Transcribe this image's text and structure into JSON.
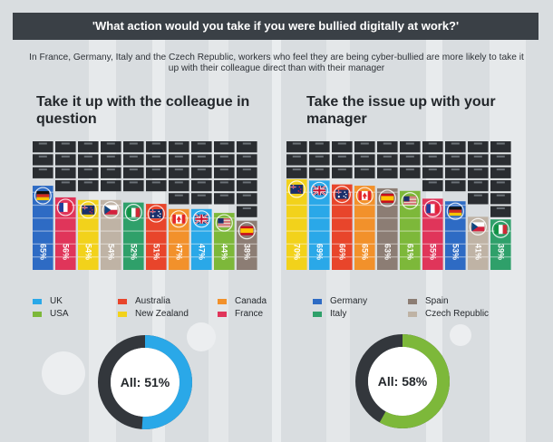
{
  "header": {
    "question": "'What action would you take if you were bullied digitally at work?'"
  },
  "subtitle": "In France, Germany, Italy and the Czech Republic, workers who feel they are being cyber-bullied are more likely to take it up with their colleague direct than with their manager",
  "colors": {
    "UK": "#2aa8e8",
    "USA": "#7db83a",
    "Australia": "#e8452b",
    "New Zealand": "#f2d21b",
    "Canada": "#f2912b",
    "France": "#e0355a",
    "Germany": "#2e6bc4",
    "Italy": "#2fa06a",
    "Spain": "#8c7d74",
    "Czech Republic": "#bfb3a5",
    "cabinet_dark": "#2a2d31",
    "donut_dark": "#33373c"
  },
  "legend": {
    "items": [
      {
        "label": "UK",
        "key": "UK"
      },
      {
        "label": "USA",
        "key": "USA"
      },
      {
        "label": "Australia",
        "key": "Australia"
      },
      {
        "label": "New Zealand",
        "key": "New Zealand"
      },
      {
        "label": "Canada",
        "key": "Canada"
      },
      {
        "label": "France",
        "key": "France"
      },
      {
        "label": "Germany",
        "key": "Germany"
      },
      {
        "label": "Italy",
        "key": "Italy"
      },
      {
        "label": "Spain",
        "key": "Spain"
      },
      {
        "label": "Czech Republic",
        "key": "Czech Republic"
      }
    ]
  },
  "chart_data": [
    {
      "type": "bar",
      "title": "Take it up with the colleague in question",
      "categories": [
        "Germany",
        "France",
        "New Zealand",
        "Czech Republic",
        "Italy",
        "Australia",
        "Canada",
        "UK",
        "USA",
        "Spain"
      ],
      "values": [
        65,
        56,
        54,
        54,
        52,
        51,
        47,
        47,
        44,
        38
      ],
      "value_labels": [
        "65%",
        "56%",
        "54%",
        "54%",
        "52%",
        "51%",
        "47%",
        "47%",
        "44%",
        "38%"
      ],
      "unit": "%",
      "ylim": [
        0,
        100
      ],
      "overall": {
        "value": 51,
        "label": "All: 51%"
      }
    },
    {
      "type": "bar",
      "title": "Take the issue up with your manager",
      "categories": [
        "New Zealand",
        "UK",
        "Australia",
        "Canada",
        "Spain",
        "USA",
        "France",
        "Germany",
        "Czech Republic",
        "Italy"
      ],
      "values": [
        70,
        69,
        66,
        65,
        63,
        61,
        55,
        53,
        41,
        39
      ],
      "value_labels": [
        "70%",
        "69%",
        "66%",
        "65%",
        "63%",
        "61%",
        "55%",
        "53%",
        "41%",
        "39%"
      ],
      "unit": "%",
      "ylim": [
        0,
        100
      ],
      "overall": {
        "value": 58,
        "label": "All: 58%"
      }
    }
  ]
}
